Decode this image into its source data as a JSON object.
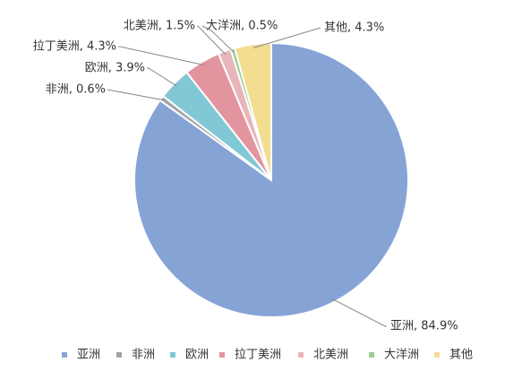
{
  "chart_data": {
    "type": "pie",
    "categories": [
      "亚洲",
      "非洲",
      "欧洲",
      "拉丁美洲",
      "北美洲",
      "大洋洲",
      "其他"
    ],
    "values": [
      84.9,
      0.6,
      3.9,
      4.3,
      1.5,
      0.5,
      4.3
    ],
    "value_labels": [
      "亚洲, 84.9%",
      "非洲, 0.6%",
      "欧洲, 3.9%",
      "拉丁美洲, 4.3%",
      "北美洲, 1.5%",
      "大洋洲, 0.5%",
      "其他, 4.3%"
    ],
    "colors": [
      "#86a3d6",
      "#a3a3a3",
      "#82c7d5",
      "#e3959f",
      "#e8b5ba",
      "#9ccf91",
      "#f2dd90"
    ],
    "legend": "bottom"
  }
}
